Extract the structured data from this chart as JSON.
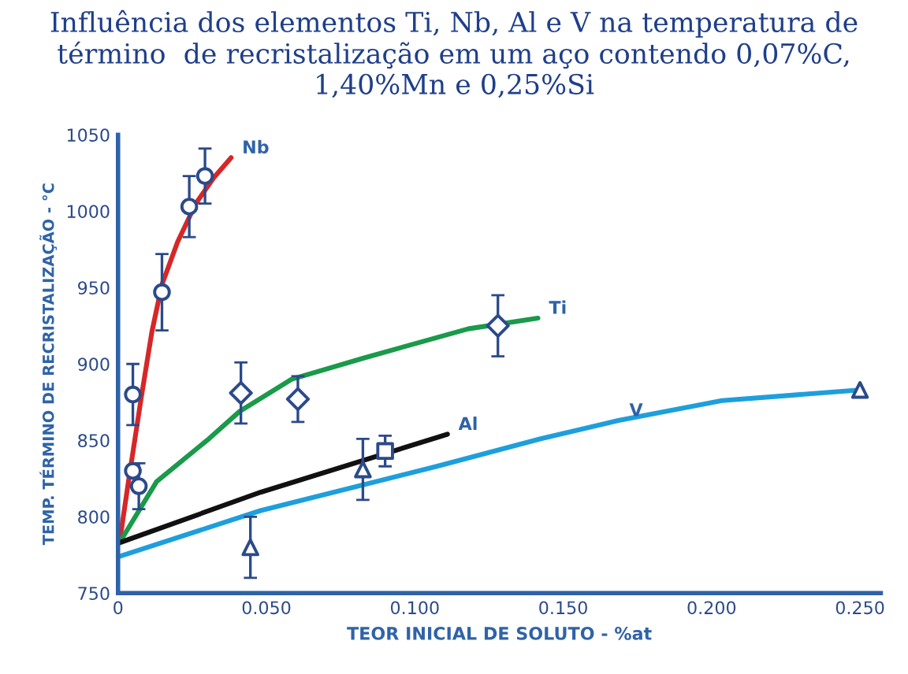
{
  "chart_data": {
    "type": "line",
    "title": "Influência dos elementos Ti, Nb, Al e V na temperatura de término  de recristalização em um aço contendo 0,07%C, 1,40%Mn e 0,25%Si",
    "xlabel": "TEOR INICIAL DE SOLUTO - %at",
    "ylabel": "TEMP. TÉRMINO DE RECRISTALIZAÇÃO - °C",
    "xlim": [
      0,
      0.257
    ],
    "ylim": [
      750,
      1050
    ],
    "xticks": [
      0,
      {
        "value": 0.05,
        "label": "0.050"
      },
      {
        "value": 0.1,
        "label": "0.100"
      },
      {
        "value": 0.15,
        "label": "0.150"
      },
      {
        "value": 0.2,
        "label": "0.200"
      },
      {
        "value": 0.25,
        "label": "0.250"
      }
    ],
    "yticks": [
      750,
      800,
      850,
      900,
      950,
      1000,
      1050
    ],
    "grid": false,
    "legend": false,
    "series": [
      {
        "color": "#d62728",
        "x": [
          0.0005,
          0.0035,
          0.0079,
          0.0114,
          0.0148,
          0.0201,
          0.0262,
          0.0323,
          0.0381
        ],
        "values": [
          783,
          823,
          879,
          921,
          952,
          980,
          1005,
          1022,
          1035
        ]
      },
      {
        "color": "#1a9a4a",
        "x": [
          0.0005,
          0.013,
          0.0306,
          0.041,
          0.0585,
          0.083,
          0.118,
          0.1415
        ],
        "values": [
          783,
          823,
          851,
          869,
          890,
          904,
          923,
          930
        ]
      },
      {
        "color": "#111111",
        "x": [
          0.0005,
          0.048,
          0.111
        ],
        "values": [
          783,
          816,
          854
        ]
      },
      {
        "color": "#1e9fdc",
        "x": [
          0.0005,
          0.048,
          0.1074,
          0.1424,
          0.1686,
          0.2035,
          0.25
        ],
        "values": [
          774,
          804,
          833,
          851,
          863,
          876,
          883
        ]
      },
      {
        "type": "scatter",
        "marker": "circle",
        "color": "#2b4a8a",
        "x": [
          0.005,
          0.005,
          0.007,
          0.0148,
          0.024,
          0.0293
        ],
        "values": [
          880,
          830,
          820,
          947,
          1003,
          1023
        ],
        "errors": [
          20,
          null,
          15,
          25,
          20,
          18
        ]
      },
      {
        "type": "scatter",
        "marker": "diamond",
        "color": "#2b4a8a",
        "x": [
          0.0414,
          0.0606,
          0.128
        ],
        "values": [
          881,
          877,
          925
        ],
        "errors": [
          20,
          15,
          20
        ]
      },
      {
        "type": "scatter",
        "marker": "square",
        "color": "#2b4a8a",
        "x": [
          0.09
        ],
        "values": [
          843
        ],
        "errors": [
          10
        ]
      },
      {
        "type": "scatter",
        "marker": "triangle",
        "color": "#2b4a8a",
        "x": [
          0.0446,
          0.0825,
          0.25
        ],
        "values": [
          780,
          831,
          883
        ],
        "errors": [
          20,
          20,
          null
        ]
      }
    ],
    "annotations": [
      {
        "text": "Nb",
        "x": 0.0381,
        "y": 1035
      },
      {
        "text": "Ti",
        "x": 0.1415,
        "y": 930
      },
      {
        "text": "Al",
        "x": 0.111,
        "y": 854
      },
      {
        "text": "V",
        "x": 0.1686,
        "y": 863
      }
    ]
  }
}
